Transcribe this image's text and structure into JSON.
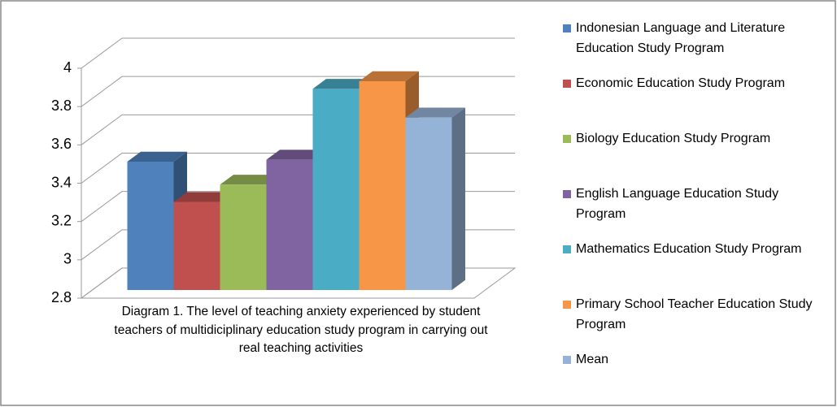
{
  "chart_data": {
    "type": "bar3d",
    "caption": "Diagram 1. The level of teaching anxiety experienced by student teachers of multidiciplinary education study program in carrying out real teaching activities",
    "series": [
      {
        "name": "Indonesian Language and Literature Education Study Program",
        "color": "#4f81bd",
        "values": [
          3.47
        ]
      },
      {
        "name": "Economic Education Study Program",
        "color": "#c0504d",
        "values": [
          3.26
        ]
      },
      {
        "name": "Biology Education Study Program",
        "color": "#9bbb59",
        "values": [
          3.35
        ]
      },
      {
        "name": "English Language Education Study Program",
        "color": "#8064a2",
        "values": [
          3.48
        ]
      },
      {
        "name": "Mathematics Education Study Program",
        "color": "#4bacc6",
        "values": [
          3.85
        ]
      },
      {
        "name": "Primary School Teacher Education Study Program",
        "color": "#f79646",
        "values": [
          3.89
        ]
      },
      {
        "name": "Mean",
        "color": "#95b3d7",
        "values": [
          3.7
        ]
      }
    ],
    "ylim": [
      2.8,
      4
    ],
    "yticks": [
      {
        "value": 2.8,
        "label": "2.8"
      },
      {
        "value": 3,
        "label": "3"
      },
      {
        "value": 3.2,
        "label": "3.2"
      },
      {
        "value": 3.4,
        "label": "3.4"
      },
      {
        "value": 3.6,
        "label": "3.6"
      },
      {
        "value": 3.8,
        "label": "3.8"
      },
      {
        "value": 4,
        "label": "4"
      }
    ],
    "grid": true,
    "legend": "right"
  }
}
